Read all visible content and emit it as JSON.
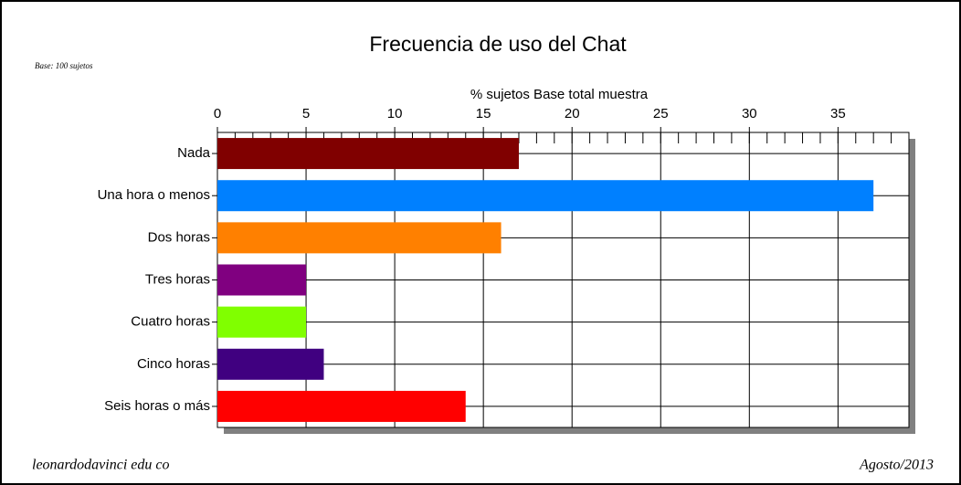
{
  "chart_data": {
    "type": "barh",
    "title": "Frecuencia de uso del Chat",
    "subtitle": "Base: 100 sujetos",
    "x_label": "% sujetos Base total muestra",
    "footer_left": "leonardodavinci edu co",
    "footer_right": "Agosto/2013",
    "categories": [
      "Nada",
      "Una hora o menos",
      "Dos horas",
      "Tres horas",
      "Cuatro horas",
      "Cinco horas",
      "Seis horas o más"
    ],
    "values": [
      17,
      37,
      16,
      5,
      5,
      6,
      14
    ],
    "colors": [
      "#800000",
      "#0080ff",
      "#ff8000",
      "#800080",
      "#80ff00",
      "#400080",
      "#ff0000"
    ],
    "xlim": [
      0,
      39
    ],
    "xticks": [
      0,
      5,
      10,
      15,
      20,
      25,
      30,
      35
    ],
    "xminorticks": [
      1,
      2,
      3,
      4,
      6,
      7,
      8,
      9,
      11,
      12,
      13,
      14,
      16,
      17,
      18,
      19,
      21,
      22,
      23,
      24,
      26,
      27,
      28,
      29,
      31,
      32,
      33,
      34,
      36,
      37,
      38
    ],
    "grid": true
  }
}
